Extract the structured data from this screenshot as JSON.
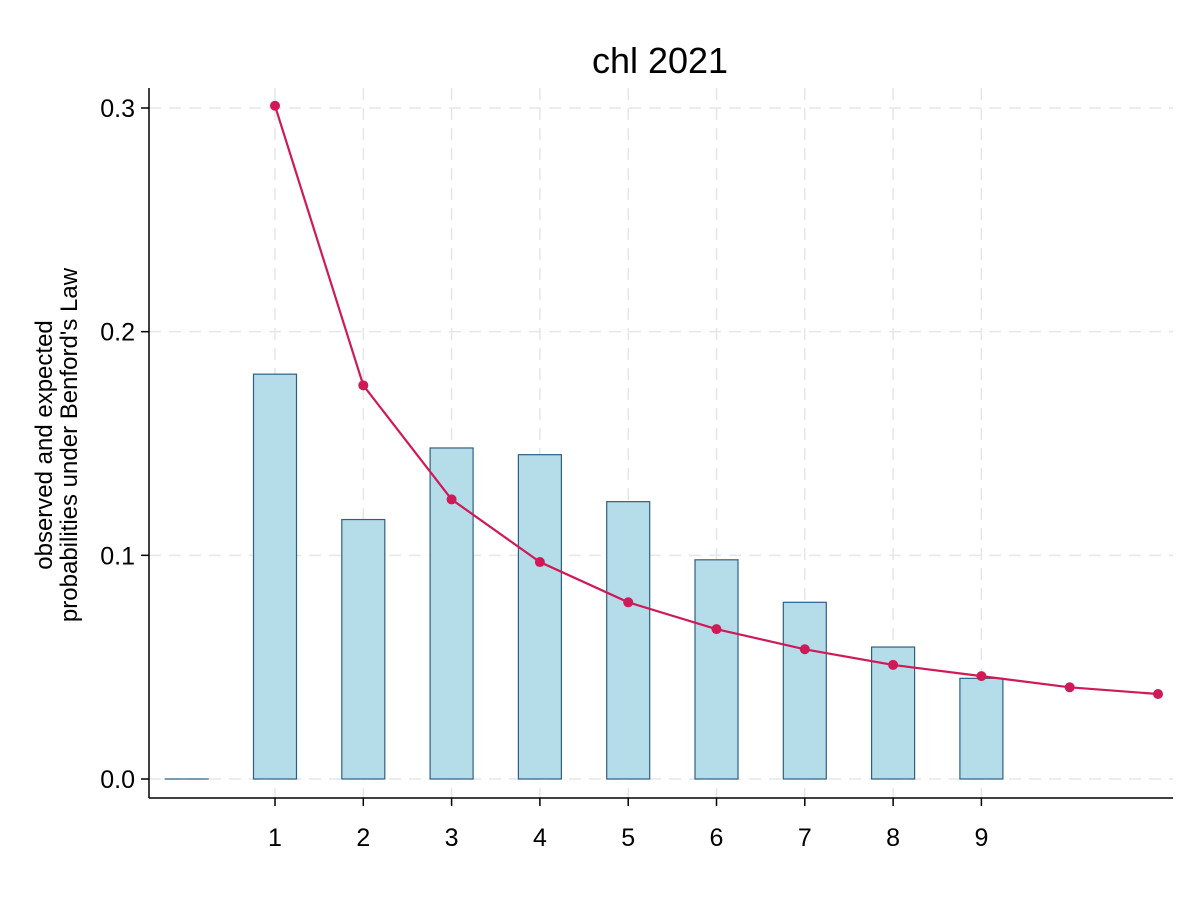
{
  "chart_data": {
    "type": "bar",
    "title": "chl 2021",
    "ylabel_lines": [
      "observed and expected",
      "probabilities under Benford's Law"
    ],
    "xlabel": "",
    "x_ticks": [
      "1",
      "2",
      "3",
      "4",
      "5",
      "6",
      "7",
      "8",
      "9"
    ],
    "y_ticks": [
      "0.0",
      "0.1",
      "0.2",
      "0.3"
    ],
    "ylim": [
      0,
      0.3
    ],
    "xlim": [
      -0.4,
      10.3
    ],
    "grid": true,
    "series": [
      {
        "kind": "bar",
        "x": [
          0,
          1,
          2,
          3,
          4,
          5,
          6,
          7,
          8,
          9
        ],
        "values": [
          0.0,
          0.181,
          0.116,
          0.148,
          0.145,
          0.124,
          0.098,
          0.079,
          0.059,
          0.045
        ],
        "color": "#b5dce9",
        "edge_color": "#2f5f82"
      },
      {
        "kind": "line",
        "x": [
          1,
          2,
          3,
          4,
          5,
          6,
          7,
          8,
          9,
          10,
          11
        ],
        "values": [
          0.301,
          0.176,
          0.125,
          0.097,
          0.079,
          0.067,
          0.058,
          0.051,
          0.046,
          0.041,
          0.038
        ],
        "color": "#cf1a57"
      }
    ]
  }
}
